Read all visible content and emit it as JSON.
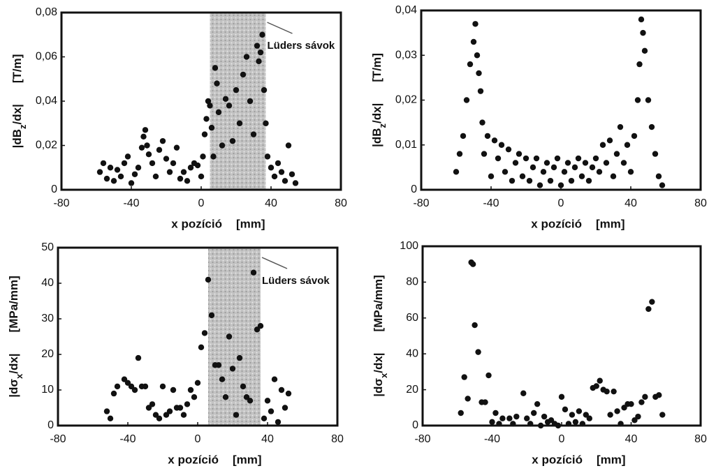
{
  "chart_data": [
    {
      "type": "scatter",
      "color": "#111111",
      "xlabel": {
        "name": "x pozíció",
        "unit": "[mm]"
      },
      "ylabel": {
        "main": "|dB",
        "sub": "z",
        "end": "/dx|",
        "unit": "[T/m]"
      },
      "xlim": [
        -80,
        80
      ],
      "xticks": [
        -80,
        -40,
        0,
        40,
        80
      ],
      "ylim": [
        0,
        0.08
      ],
      "yticks": [
        0,
        {
          "value": 0.02,
          "label": "0,02"
        },
        {
          "value": 0.04,
          "label": "0,04"
        },
        {
          "value": 0.06,
          "label": "0,06"
        },
        {
          "value": 0.08,
          "label": "0,08"
        }
      ],
      "band": [
        5,
        37
      ],
      "annotation": "Lüders sávok",
      "x": [
        -58,
        -56,
        -54,
        -52,
        -50,
        -48,
        -46,
        -44,
        -42,
        -40,
        -38,
        -36,
        -34,
        -33,
        -32,
        -31,
        -30,
        -28,
        -26,
        -24,
        -22,
        -20,
        -18,
        -16,
        -14,
        -12,
        -10,
        -8,
        -6,
        -4,
        -2,
        0,
        1,
        2,
        3,
        4,
        5,
        6,
        7,
        8,
        9,
        10,
        12,
        14,
        16,
        18,
        20,
        22,
        24,
        26,
        28,
        30,
        32,
        33,
        34,
        35,
        36,
        37,
        38,
        40,
        42,
        44,
        46,
        48,
        50,
        52,
        54
      ],
      "values": [
        0.008,
        0.012,
        0.005,
        0.01,
        0.004,
        0.009,
        0.006,
        0.012,
        0.015,
        0.003,
        0.007,
        0.01,
        0.019,
        0.024,
        0.027,
        0.02,
        0.016,
        0.012,
        0.006,
        0.018,
        0.022,
        0.014,
        0.008,
        0.012,
        0.019,
        0.005,
        0.008,
        0.004,
        0.01,
        0.012,
        0.011,
        0.006,
        0.015,
        0.025,
        0.032,
        0.04,
        0.038,
        0.028,
        0.015,
        0.055,
        0.048,
        0.035,
        0.02,
        0.041,
        0.038,
        0.022,
        0.045,
        0.03,
        0.052,
        0.06,
        0.04,
        0.025,
        0.065,
        0.058,
        0.062,
        0.07,
        0.045,
        0.03,
        0.015,
        0.01,
        0.006,
        0.012,
        0.008,
        0.004,
        0.02,
        0.007,
        0.003
      ]
    },
    {
      "type": "scatter",
      "color": "#111111",
      "xlabel": {
        "name": "x pozíció",
        "unit": "[mm]"
      },
      "ylabel": {
        "main": "|dB",
        "sub": "z",
        "end": "/dx|",
        "unit": "[T/m]"
      },
      "xlim": [
        -80,
        80
      ],
      "xticks": [
        -80,
        -40,
        0,
        40,
        80
      ],
      "ylim": [
        0,
        0.04
      ],
      "yticks": [
        0,
        {
          "value": 0.01,
          "label": "0,01"
        },
        {
          "value": 0.02,
          "label": "0,02"
        },
        {
          "value": 0.03,
          "label": "0,03"
        },
        {
          "value": 0.04,
          "label": "0,04"
        }
      ],
      "x": [
        -60,
        -58,
        -56,
        -54,
        -52,
        -50,
        -49,
        -48,
        -47,
        -46,
        -45,
        -44,
        -42,
        -40,
        -38,
        -36,
        -34,
        -32,
        -30,
        -28,
        -26,
        -24,
        -22,
        -20,
        -18,
        -16,
        -14,
        -12,
        -10,
        -8,
        -6,
        -4,
        -2,
        0,
        2,
        4,
        6,
        8,
        10,
        12,
        14,
        16,
        18,
        20,
        22,
        24,
        26,
        28,
        30,
        32,
        34,
        36,
        38,
        40,
        42,
        44,
        45,
        46,
        47,
        48,
        50,
        52,
        54,
        56,
        58
      ],
      "values": [
        0.004,
        0.008,
        0.012,
        0.02,
        0.028,
        0.033,
        0.037,
        0.03,
        0.026,
        0.022,
        0.015,
        0.008,
        0.012,
        0.003,
        0.011,
        0.007,
        0.01,
        0.004,
        0.009,
        0.002,
        0.006,
        0.008,
        0.003,
        0.007,
        0.002,
        0.005,
        0.007,
        0.001,
        0.004,
        0.006,
        0.002,
        0.005,
        0.007,
        0.001,
        0.004,
        0.006,
        0.002,
        0.005,
        0.007,
        0.003,
        0.006,
        0.002,
        0.005,
        0.007,
        0.004,
        0.01,
        0.006,
        0.011,
        0.003,
        0.008,
        0.014,
        0.006,
        0.01,
        0.004,
        0.012,
        0.02,
        0.028,
        0.038,
        0.035,
        0.031,
        0.02,
        0.014,
        0.008,
        0.003,
        0.001
      ]
    },
    {
      "type": "scatter",
      "color": "#111111",
      "xlabel": {
        "name": "x pozíció",
        "unit": "[mm]"
      },
      "ylabel": {
        "main": "|dσ",
        "sub": "x",
        "end": "/dx|",
        "unit": "[MPa/mm]"
      },
      "xlim": [
        -80,
        80
      ],
      "xticks": [
        -80,
        -40,
        0,
        40,
        80
      ],
      "ylim": [
        0,
        50
      ],
      "yticks": [
        0,
        10,
        20,
        30,
        40,
        50
      ],
      "band": [
        6,
        36
      ],
      "annotation": "Lüders sávok",
      "x": [
        -52,
        -50,
        -48,
        -46,
        -42,
        -40,
        -38,
        -36,
        -34,
        -32,
        -30,
        -28,
        -26,
        -24,
        -22,
        -20,
        -18,
        -16,
        -14,
        -12,
        -10,
        -8,
        -6,
        -4,
        -2,
        0,
        2,
        4,
        6,
        8,
        10,
        12,
        14,
        16,
        18,
        20,
        22,
        24,
        26,
        28,
        30,
        32,
        34,
        36,
        38,
        40,
        42,
        44,
        46,
        48,
        50,
        52
      ],
      "values": [
        4,
        2,
        9,
        11,
        13,
        12,
        11,
        10,
        19,
        11,
        11,
        5,
        6,
        3,
        2,
        11,
        3,
        4,
        10,
        5,
        5,
        3,
        6,
        10,
        8,
        12,
        22,
        26,
        41,
        31,
        17,
        17,
        13,
        8,
        25,
        16,
        3,
        19,
        11,
        8,
        7,
        43,
        27,
        28,
        2,
        7,
        4,
        13,
        1,
        10,
        5,
        9
      ]
    },
    {
      "type": "scatter",
      "color": "#111111",
      "xlabel": {
        "name": "x pozíció",
        "unit": "[mm]"
      },
      "ylabel": {
        "main": "|dσ",
        "sub": "x",
        "end": "/dx|",
        "unit": "[MPa/mm]"
      },
      "xlim": [
        -80,
        80
      ],
      "xticks": [
        -80,
        -40,
        0,
        40,
        80
      ],
      "ylim": [
        0,
        100
      ],
      "yticks": [
        0,
        20,
        40,
        60,
        80,
        100
      ],
      "x": [
        -58,
        -56,
        -54,
        -52,
        -51,
        -50,
        -48,
        -46,
        -44,
        -42,
        -40,
        -38,
        -36,
        -34,
        -30,
        -28,
        -26,
        -22,
        -20,
        -18,
        -16,
        -14,
        -12,
        -10,
        -8,
        -6,
        -4,
        -2,
        0,
        2,
        4,
        6,
        8,
        10,
        12,
        14,
        16,
        18,
        20,
        22,
        24,
        26,
        28,
        30,
        32,
        34,
        36,
        38,
        40,
        42,
        44,
        46,
        48,
        50,
        52,
        54,
        56,
        58
      ],
      "values": [
        7,
        27,
        15,
        91,
        90,
        56,
        41,
        13,
        13,
        28,
        2,
        7,
        1,
        4,
        4,
        1,
        5,
        18,
        4,
        1,
        7,
        12,
        0,
        5,
        2,
        3,
        1,
        0,
        16,
        9,
        1,
        6,
        2,
        8,
        1,
        6,
        4,
        21,
        22,
        25,
        20,
        19,
        6,
        19,
        8,
        1,
        10,
        12,
        12,
        3,
        5,
        13,
        16,
        65,
        69,
        16,
        17,
        6
      ]
    }
  ]
}
